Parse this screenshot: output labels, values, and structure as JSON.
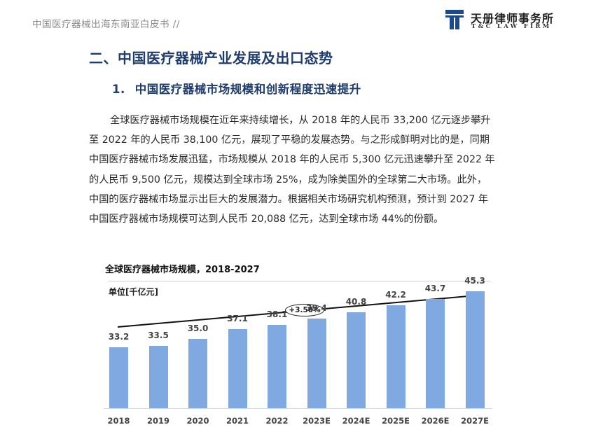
{
  "header": {
    "doc_title": "中国医疗器械出海东南亚白皮书  //",
    "logo": {
      "cn": "天册律师事务所",
      "en": "T&C LAW FIRM",
      "color": "#1f4a8a"
    }
  },
  "section": {
    "heading": "二、中国医疗器械产业发展及出口态势",
    "subheading_num": "1.",
    "subheading": "中国医疗器械市场规模和创新程度迅速提升"
  },
  "paragraph": {
    "lines": [
      "全球医疗器械市场规模在近年来持续增长，从 2018 年的人民币 33,200 亿元逐步攀升",
      "至 2022 年的人民币 38,100 亿元，展现了平稳的发展态势。与之形成鲜明对比的是，同期",
      "中国医疗器械市场发展迅猛，市场规模从 2018 年的人民币 5,300 亿元迅速攀升至 2022 年",
      "的人民币 9,500 亿元，规模达到全球市场 25%，成为除美国外的全球第二大市场。此外，",
      "中国的医疗器械市场显示出巨大的发展潜力。根据相关市场研究机构预测，预计到 2027 年",
      "中国医疗器械市场规模可达到人民币 20,088 亿元，达到全球市场 44%的份额。"
    ]
  },
  "chart_data": {
    "type": "bar",
    "title": "全球医疗器械市场规模，2018-2027",
    "ylabel": "单位[千亿元]",
    "xlabel": "",
    "categories": [
      "2018",
      "2019",
      "2020",
      "2021",
      "2022",
      "2023E",
      "2024E",
      "2025E",
      "2026E",
      "2027E"
    ],
    "values": [
      33.2,
      33.5,
      35.0,
      37.1,
      38.1,
      39.4,
      40.8,
      42.2,
      43.7,
      45.3
    ],
    "value_labels": [
      "33.2",
      "33.5",
      "35.0",
      "37.1",
      "38.1",
      "39.4",
      "40.8",
      "42.2",
      "43.7",
      "45.3"
    ],
    "annotation": "+3.50%",
    "bar_color": "#7fa9e0",
    "grid": false,
    "legend": "none"
  }
}
